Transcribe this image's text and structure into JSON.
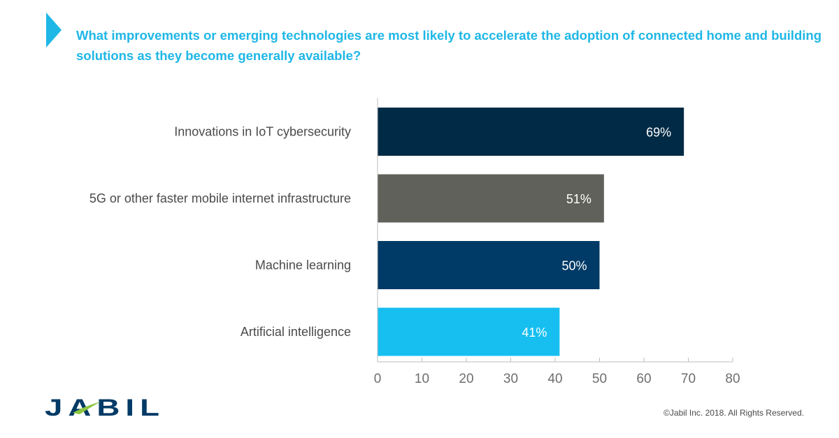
{
  "header": {
    "title": "What improvements or emerging technologies are most likely to accelerate the adoption of connected home and building solutions as they become generally available?"
  },
  "chart_data": {
    "type": "bar",
    "orientation": "horizontal",
    "categories": [
      "Innovations in IoT cybersecurity",
      "5G or other faster mobile internet infrastructure",
      "Machine learning",
      "Artificial intelligence"
    ],
    "values": [
      69,
      51,
      50,
      41
    ],
    "value_labels": [
      "69%",
      "51%",
      "50%",
      "41%"
    ],
    "bar_colors": [
      "#002a45",
      "#61615b",
      "#003a66",
      "#16bff0"
    ],
    "xlim": [
      0,
      80
    ],
    "xticks": [
      0,
      10,
      20,
      30,
      40,
      50,
      60,
      70,
      80
    ],
    "grid": false,
    "legend": "none"
  },
  "brand": {
    "logo_text": "JABIL",
    "logo_color": "#003a66",
    "accent_color": "#1fb7e6"
  },
  "footer": {
    "copyright": "©Jabil Inc. 2018. All Rights Reserved."
  }
}
